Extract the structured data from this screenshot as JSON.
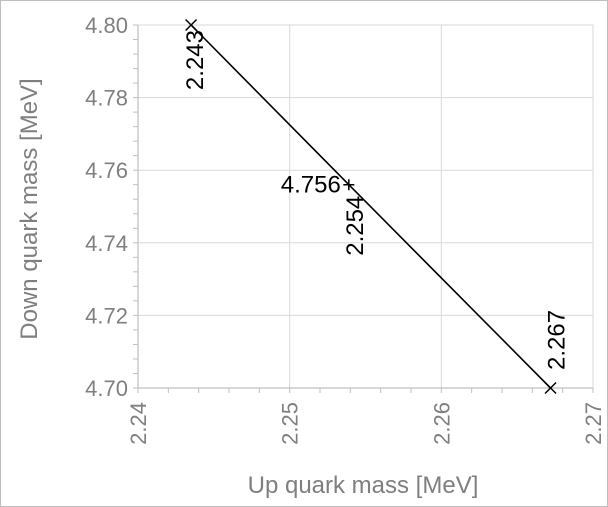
{
  "chart_data": {
    "type": "scatter",
    "title": "",
    "xlabel": "Up quark mass [MeV]",
    "ylabel": "Down quark mass [MeV]",
    "xlim": [
      2.24,
      2.27
    ],
    "ylim": [
      4.7,
      4.8
    ],
    "xticks": [
      "2.24",
      "2.25",
      "2.26",
      "2.27"
    ],
    "yticks": [
      "4.70",
      "4.72",
      "4.74",
      "4.76",
      "4.78",
      "4.80"
    ],
    "grid": true,
    "series": [
      {
        "values": [
          {
            "x": 2.2435,
            "y": 4.8,
            "marker": "x"
          },
          {
            "x": 2.2539,
            "y": 4.756,
            "marker": "+"
          },
          {
            "x": 2.2672,
            "y": 4.7,
            "marker": "x"
          }
        ]
      }
    ],
    "annotations": [
      {
        "text": "2.243",
        "x": 2.2435,
        "y": 4.8
      },
      {
        "text": "4.756",
        "x": 2.2539,
        "y": 4.756
      },
      {
        "text": "2.254",
        "x": 2.2539,
        "y": 4.756
      },
      {
        "text": "2.267",
        "x": 2.2672,
        "y": 4.7
      }
    ],
    "colors": {
      "line": "#000000",
      "grid": "#d9d9d9",
      "axis_text": "#7f7f7f"
    }
  }
}
